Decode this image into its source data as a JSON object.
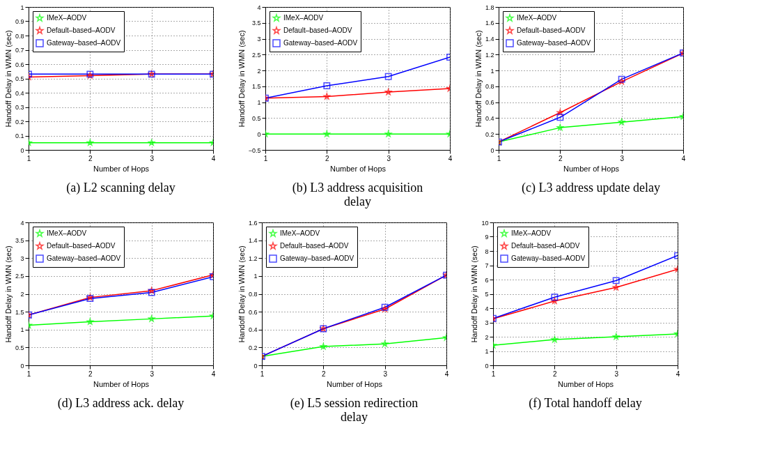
{
  "chart_data": [
    {
      "type": "line",
      "title": "(a) L2 scanning delay",
      "xlabel": "Number of Hops",
      "ylabel": "Handoff Delay in WMN (sec)",
      "x": [
        1,
        2,
        3,
        4
      ],
      "xlim": [
        1,
        4
      ],
      "xticks": [
        1,
        2,
        3,
        4
      ],
      "ylim": [
        0,
        1
      ],
      "yticks": [
        0,
        0.1,
        0.2,
        0.3,
        0.4,
        0.5,
        0.6,
        0.7,
        0.8,
        0.9,
        1
      ],
      "grid": true,
      "legend": "top left",
      "line_style": "solid",
      "series": [
        {
          "name": "IMeX–AODV",
          "color": "#00ff00",
          "marker": "star",
          "values": [
            0.05,
            0.05,
            0.05,
            0.05
          ]
        },
        {
          "name": "Default–based–AODV",
          "color": "#ff0000",
          "marker": "star",
          "values": [
            0.51,
            0.52,
            0.53,
            0.53
          ]
        },
        {
          "name": "Gateway–based–AODV",
          "color": "#0000ff",
          "marker": "square",
          "values": [
            0.53,
            0.53,
            0.53,
            0.53
          ]
        }
      ]
    },
    {
      "type": "line",
      "title": "(b) L3 address acquisition delay",
      "xlabel": "Number of Hops",
      "ylabel": "Handoff Delay in WMN (sec)",
      "x": [
        1,
        2,
        3,
        4
      ],
      "xlim": [
        1,
        4
      ],
      "xticks": [
        1,
        2,
        3,
        4
      ],
      "ylim": [
        -0.5,
        4
      ],
      "yticks": [
        -0.5,
        0,
        0.5,
        1,
        1.5,
        2,
        2.5,
        3,
        3.5,
        4
      ],
      "grid": true,
      "legend": "top left",
      "line_style": "solid",
      "series": [
        {
          "name": "IMeX–AODV",
          "color": "#00ff00",
          "marker": "star",
          "values": [
            0,
            0,
            0,
            0
          ]
        },
        {
          "name": "Default–based–AODV",
          "color": "#ff0000",
          "marker": "star",
          "values": [
            1.13,
            1.18,
            1.32,
            1.43
          ]
        },
        {
          "name": "Gateway–based–AODV",
          "color": "#0000ff",
          "marker": "square",
          "values": [
            1.13,
            1.52,
            1.81,
            2.42
          ]
        }
      ]
    },
    {
      "type": "line",
      "title": "(c) L3 address update delay",
      "xlabel": "Number of Hops",
      "ylabel": "Handoff Delay in WMN (sec)",
      "x": [
        1,
        2,
        3,
        4
      ],
      "xlim": [
        1,
        4
      ],
      "xticks": [
        1,
        2,
        3,
        4
      ],
      "ylim": [
        0,
        1.8
      ],
      "yticks": [
        0,
        0.2,
        0.4,
        0.6,
        0.8,
        1,
        1.2,
        1.4,
        1.6,
        1.8
      ],
      "grid": true,
      "legend": "top left",
      "line_style": "solid",
      "series": [
        {
          "name": "IMeX–AODV",
          "color": "#00ff00",
          "marker": "star",
          "values": [
            0.1,
            0.28,
            0.35,
            0.42
          ]
        },
        {
          "name": "Default–based–AODV",
          "color": "#ff0000",
          "marker": "star",
          "values": [
            0.1,
            0.47,
            0.86,
            1.22
          ]
        },
        {
          "name": "Gateway–based–AODV",
          "color": "#0000ff",
          "marker": "square",
          "values": [
            0.1,
            0.41,
            0.89,
            1.22
          ]
        }
      ]
    },
    {
      "type": "line",
      "title": "(d) L3 address ack. delay",
      "xlabel": "Number of Hops",
      "ylabel": "Handoff Delay in WMN (sec)",
      "x": [
        1,
        2,
        3,
        4
      ],
      "xlim": [
        1,
        4
      ],
      "xticks": [
        1,
        2,
        3,
        4
      ],
      "ylim": [
        0,
        4
      ],
      "yticks": [
        0,
        0.5,
        1,
        1.5,
        2,
        2.5,
        3,
        3.5,
        4
      ],
      "grid": true,
      "legend": "top left",
      "line_style": "solid",
      "series": [
        {
          "name": "IMeX–AODV",
          "color": "#00ff00",
          "marker": "star",
          "values": [
            1.12,
            1.22,
            1.3,
            1.38
          ]
        },
        {
          "name": "Default–based–AODV",
          "color": "#ff0000",
          "marker": "star",
          "values": [
            1.41,
            1.9,
            2.09,
            2.53
          ]
        },
        {
          "name": "Gateway–based–AODV",
          "color": "#0000ff",
          "marker": "square",
          "values": [
            1.41,
            1.87,
            2.04,
            2.48
          ]
        }
      ]
    },
    {
      "type": "line",
      "title": "(e) L5 session redirection delay",
      "xlabel": "Number of Hops",
      "ylabel": "Handoff Delay in WMN (sec)",
      "x": [
        1,
        2,
        3,
        4
      ],
      "xlim": [
        1,
        4
      ],
      "xticks": [
        1,
        2,
        3,
        4
      ],
      "ylim": [
        0,
        1.6
      ],
      "yticks": [
        0,
        0.2,
        0.4,
        0.6,
        0.8,
        1,
        1.2,
        1.4,
        1.6
      ],
      "grid": true,
      "legend": "top left",
      "line_style": "solid",
      "series": [
        {
          "name": "IMeX–AODV",
          "color": "#00ff00",
          "marker": "star",
          "values": [
            0.1,
            0.21,
            0.24,
            0.31
          ]
        },
        {
          "name": "Default–based–AODV",
          "color": "#ff0000",
          "marker": "star",
          "values": [
            0.1,
            0.41,
            0.63,
            1.01
          ]
        },
        {
          "name": "Gateway–based–AODV",
          "color": "#0000ff",
          "marker": "square",
          "values": [
            0.1,
            0.41,
            0.65,
            1.01
          ]
        }
      ]
    },
    {
      "type": "line",
      "title": "(f) Total handoff delay",
      "xlabel": "Number of Hops",
      "ylabel": "Handoff Delay in WMN (sec)",
      "x": [
        1,
        2,
        3,
        4
      ],
      "xlim": [
        1,
        4
      ],
      "xticks": [
        1,
        2,
        3,
        4
      ],
      "ylim": [
        0,
        10
      ],
      "yticks": [
        0,
        1,
        2,
        3,
        4,
        5,
        6,
        7,
        8,
        9,
        10
      ],
      "grid": true,
      "legend": "top left",
      "line_style": "solid",
      "series": [
        {
          "name": "IMeX–AODV",
          "color": "#00ff00",
          "marker": "star",
          "values": [
            1.4,
            1.8,
            2.0,
            2.2
          ]
        },
        {
          "name": "Default–based–AODV",
          "color": "#ff0000",
          "marker": "star",
          "values": [
            3.25,
            4.5,
            5.45,
            6.72
          ]
        },
        {
          "name": "Gateway–based–AODV",
          "color": "#0000ff",
          "marker": "square",
          "values": [
            3.28,
            4.77,
            5.93,
            7.68
          ]
        }
      ]
    }
  ]
}
